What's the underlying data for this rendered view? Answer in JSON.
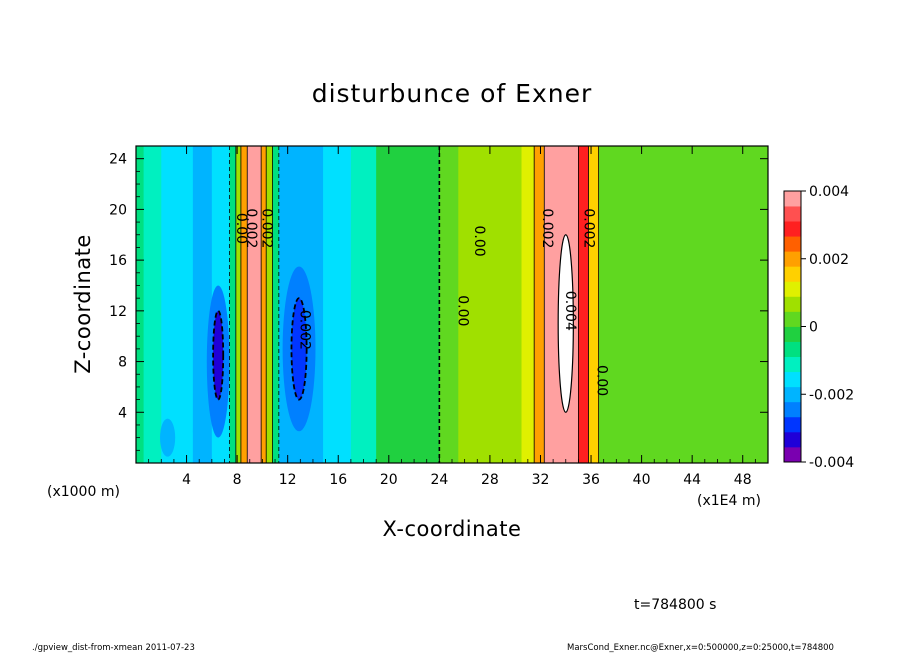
{
  "chart_data": {
    "type": "heatmap",
    "title": "disturbunce of Exner",
    "xlabel": "X-coordinate",
    "ylabel": "Z-coordinate",
    "x_unit": "(x1000 m)",
    "x_tick_unit": "(x1E4 m)",
    "x_ticks": [
      "4",
      "8",
      "12",
      "16",
      "20",
      "24",
      "28",
      "32",
      "36",
      "40",
      "44",
      "48"
    ],
    "y_ticks": [
      "4",
      "8",
      "12",
      "16",
      "20",
      "24"
    ],
    "xlim": [
      0,
      50
    ],
    "ylim": [
      0,
      25
    ],
    "colorbar": {
      "range": [
        -0.004,
        0.004
      ],
      "ticks": [
        "0.004",
        "0.002",
        "0",
        "-0.002",
        "-0.004"
      ],
      "colors": [
        "#7a00b0",
        "#1f00d8",
        "#0036ff",
        "#0080ff",
        "#00b4ff",
        "#00e0ff",
        "#00f0c0",
        "#00e080",
        "#20d040",
        "#60d820",
        "#a0e000",
        "#e0f000",
        "#ffd000",
        "#ffa000",
        "#ff6000",
        "#ff2020",
        "#ff5050",
        "#ffa0a0"
      ]
    },
    "contour_labels": [
      {
        "text": "0.00",
        "x": 8.0,
        "y": 18.5,
        "rotate": 90
      },
      {
        "text": "0.002",
        "x": 8.8,
        "y": 18.5,
        "rotate": 90
      },
      {
        "text": "0.002",
        "x": 10.0,
        "y": 18.5,
        "rotate": 90
      },
      {
        "text": "0.002",
        "x": 13.0,
        "y": 10.5,
        "rotate": 90
      },
      {
        "text": "0.00",
        "x": 26.8,
        "y": 17.5,
        "rotate": 90
      },
      {
        "text": "0.00",
        "x": 25.5,
        "y": 12.0,
        "rotate": 90
      },
      {
        "text": "0.002",
        "x": 32.2,
        "y": 18.5,
        "rotate": 90
      },
      {
        "text": "0.002",
        "x": 35.5,
        "y": 18.5,
        "rotate": 90
      },
      {
        "text": "0.004",
        "x": 34.0,
        "y": 12.0,
        "rotate": 90
      },
      {
        "text": "0.00",
        "x": 36.5,
        "y": 6.5,
        "rotate": 90
      }
    ],
    "time_label": "t=784800 s"
  },
  "footer": {
    "left": "./gpview_dist-from-xmean 2011-07-23",
    "right": "MarsCond_Exner.nc@Exner,x=0:500000,z=0:25000,t=784800"
  },
  "field_bands": [
    {
      "x0": 0,
      "x1": 0.6,
      "v": -0.0006
    },
    {
      "x0": 0.6,
      "x1": 2.0,
      "v": -0.001
    },
    {
      "x0": 2.0,
      "x1": 4.5,
      "v": -0.0015
    },
    {
      "x0": 4.5,
      "x1": 6.0,
      "v": -0.002
    },
    {
      "x0": 6.0,
      "x1": 7.4,
      "v": -0.0017
    },
    {
      "x0": 7.4,
      "x1": 7.9,
      "v": -0.0005
    },
    {
      "x0": 7.9,
      "x1": 8.3,
      "v": 0.0008
    },
    {
      "x0": 8.3,
      "x1": 8.8,
      "v": 0.002
    },
    {
      "x0": 8.8,
      "x1": 9.9,
      "v": 0.0036
    },
    {
      "x0": 9.9,
      "x1": 10.3,
      "v": 0.0022
    },
    {
      "x0": 10.3,
      "x1": 10.8,
      "v": 0.0008
    },
    {
      "x0": 10.8,
      "x1": 11.3,
      "v": -0.0005
    },
    {
      "x0": 11.3,
      "x1": 14.8,
      "v": -0.0018
    },
    {
      "x0": 14.8,
      "x1": 17.0,
      "v": -0.0014
    },
    {
      "x0": 17.0,
      "x1": 19.0,
      "v": -0.001
    },
    {
      "x0": 19.0,
      "x1": 24.0,
      "v": -0.0004
    },
    {
      "x0": 24.0,
      "x1": 25.5,
      "v": 0.0002
    },
    {
      "x0": 25.5,
      "x1": 28.5,
      "v": 0.0005
    },
    {
      "x0": 28.5,
      "x1": 30.5,
      "v": 0.0007
    },
    {
      "x0": 30.5,
      "x1": 31.5,
      "v": 0.0012
    },
    {
      "x0": 31.5,
      "x1": 32.3,
      "v": 0.0022
    },
    {
      "x0": 32.3,
      "x1": 33.0,
      "v": 0.0036
    },
    {
      "x0": 33.0,
      "x1": 35.0,
      "v": 0.004
    },
    {
      "x0": 35.0,
      "x1": 35.8,
      "v": 0.003
    },
    {
      "x0": 35.8,
      "x1": 36.6,
      "v": 0.0014
    },
    {
      "x0": 36.6,
      "x1": 40.0,
      "v": 0.0004
    },
    {
      "x0": 40.0,
      "x1": 44.0,
      "v": 0.0001
    },
    {
      "x0": 44.0,
      "x1": 48.0,
      "v": 0.0004
    },
    {
      "x0": 48.0,
      "x1": 50.0,
      "v": 0.0002
    }
  ],
  "field_blobs": [
    {
      "cx": 6.5,
      "cy": 8.0,
      "rx": 0.9,
      "ry": 6.0,
      "v": -0.0026
    },
    {
      "cx": 6.5,
      "cy": 8.5,
      "rx": 0.4,
      "ry": 3.5,
      "v": -0.0032
    },
    {
      "cx": 12.9,
      "cy": 9.0,
      "rx": 1.3,
      "ry": 6.5,
      "v": -0.0025
    },
    {
      "cx": 12.9,
      "cy": 9.0,
      "rx": 0.6,
      "ry": 4.0,
      "v": -0.0031
    },
    {
      "cx": 34.0,
      "cy": 11.0,
      "rx": 0.6,
      "ry": 7.0,
      "v": 0.0045
    },
    {
      "cx": 2.5,
      "cy": 2.0,
      "rx": 0.6,
      "ry": 1.5,
      "v": -0.002
    },
    {
      "cx": 5.0,
      "cy": 2.5,
      "rx": 0.5,
      "ry": 1.6,
      "v": -0.0022
    }
  ]
}
